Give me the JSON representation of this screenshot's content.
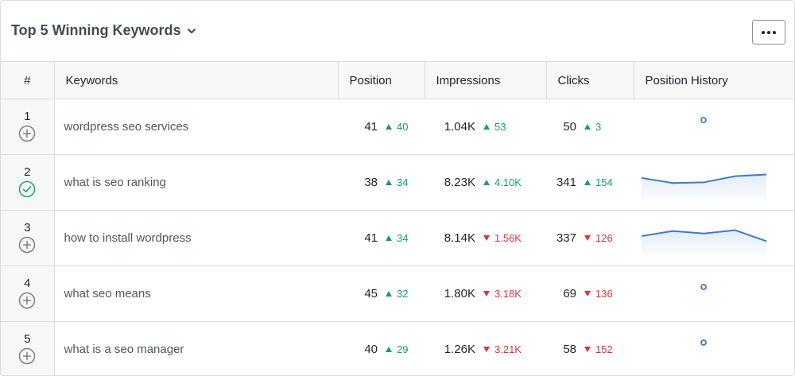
{
  "widget": {
    "title": "Top 5 Winning Keywords"
  },
  "table": {
    "headers": {
      "rank": "#",
      "keywords": "Keywords",
      "position": "Position",
      "impressions": "Impressions",
      "clicks": "Clicks",
      "history": "Position History"
    },
    "rows": [
      {
        "rank": "1",
        "tracked": false,
        "keyword": "wordpress seo services",
        "position": "41",
        "position_delta": "40",
        "position_dir": "up",
        "impressions": "1.04K",
        "impressions_delta": "53",
        "impressions_dir": "up",
        "clicks": "50",
        "clicks_delta": "3",
        "clicks_dir": "up",
        "history": [
          10
        ]
      },
      {
        "rank": "2",
        "tracked": true,
        "keyword": "what is seo ranking",
        "position": "38",
        "position_delta": "34",
        "position_dir": "up",
        "impressions": "8.23K",
        "impressions_delta": "4.10K",
        "impressions_dir": "up",
        "clicks": "341",
        "clicks_delta": "154",
        "clicks_dir": "up",
        "history": [
          14,
          11,
          11.4,
          15,
          16
        ]
      },
      {
        "rank": "3",
        "tracked": false,
        "keyword": "how to install wordpress",
        "position": "41",
        "position_delta": "34",
        "position_dir": "up",
        "impressions": "8.14K",
        "impressions_delta": "1.56K",
        "impressions_dir": "down",
        "clicks": "337",
        "clicks_delta": "126",
        "clicks_dir": "down",
        "history": [
          12.5,
          15.5,
          14,
          16,
          9.5
        ]
      },
      {
        "rank": "4",
        "tracked": false,
        "keyword": "what seo means",
        "position": "45",
        "position_delta": "32",
        "position_dir": "up",
        "impressions": "1.80K",
        "impressions_delta": "3.18K",
        "impressions_dir": "down",
        "clicks": "69",
        "clicks_delta": "136",
        "clicks_dir": "down",
        "history": [
          10
        ]
      },
      {
        "rank": "5",
        "tracked": false,
        "keyword": "what is a seo manager",
        "position": "40",
        "position_delta": "29",
        "position_dir": "up",
        "impressions": "1.26K",
        "impressions_delta": "3.21K",
        "impressions_dir": "down",
        "clicks": "58",
        "clicks_delta": "152",
        "clicks_dir": "down",
        "history": [
          10
        ]
      }
    ]
  },
  "colors": {
    "up": "#1a9c6b",
    "down": "#d63638",
    "sparkline": "#3c7dc4",
    "tracked": "#22a06b",
    "untracked": "#7c7f83"
  },
  "icons": {
    "title_dropdown": "chevron-down-icon",
    "more": "more-dots-icon",
    "untracked": "plus-circle-icon",
    "tracked": "check-circle-icon",
    "trend_up": "triangle-up-icon",
    "trend_down": "triangle-down-icon"
  }
}
